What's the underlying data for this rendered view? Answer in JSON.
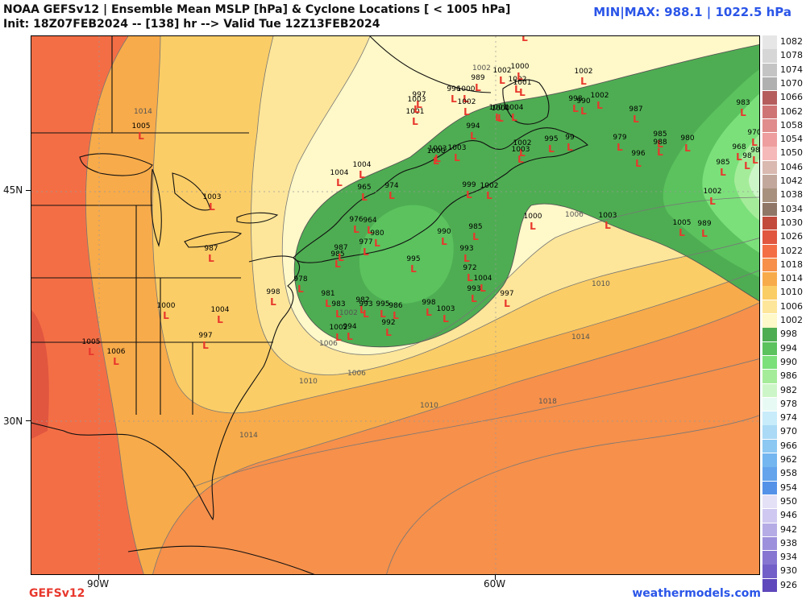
{
  "header": {
    "title_line1": "NOAA GEFSv12 | Ensemble Mean MSLP [hPa] & Cyclone Locations [ < 1005 hPa]",
    "title_line2": "Init: 18Z07FEB2024 -- [138] hr --> Valid Tue 12Z13FEB2024",
    "minmax": "MIN|MAX: 988.1 | 1022.5 hPa"
  },
  "axes": {
    "lat_labels": [
      "45N",
      "30N"
    ],
    "lon_labels": [
      "90W",
      "60W"
    ]
  },
  "footer": {
    "model": "GEFSv12",
    "site": "weathermodels.com"
  },
  "colorbar": {
    "levels": [
      "1082",
      "1078",
      "1074",
      "1070",
      "1066",
      "1062",
      "1058",
      "1054",
      "1050",
      "1046",
      "1042",
      "1038",
      "1034",
      "1030",
      "1026",
      "1022",
      "1018",
      "1014",
      "1010",
      "1006",
      "1002",
      "998",
      "994",
      "990",
      "986",
      "982",
      "978",
      "974",
      "970",
      "966",
      "962",
      "958",
      "954",
      "950",
      "946",
      "942",
      "938",
      "934",
      "930",
      "926"
    ],
    "colors": [
      "#e6e6e6",
      "#d6d6d6",
      "#c4c4c4",
      "#b0b0b0",
      "#b55d5d",
      "#cf7474",
      "#e08c8c",
      "#ee9e9e",
      "#f6b9b9",
      "#d9b9b0",
      "#c2a89c",
      "#a8907e",
      "#8f7666",
      "#c24a3c",
      "#e0563f",
      "#f46e45",
      "#f6904b",
      "#f8ab4a",
      "#fbcd66",
      "#fde69a",
      "#fff8c8",
      "#4ead52",
      "#5bc25e",
      "#7be07a",
      "#a5ec9a",
      "#cdf6c8",
      "#e8faf4",
      "#c8ecfa",
      "#aadaf6",
      "#8cc8f2",
      "#74b6ef",
      "#63a4ec",
      "#5492e8",
      "#e4e0f6",
      "#cfc8f0",
      "#b5ace6",
      "#9c90dc",
      "#8676d2",
      "#725fc8",
      "#5f48bc"
    ]
  },
  "map": {
    "contour_labels": [
      "1014",
      "1006",
      "1002",
      "1010",
      "1014",
      "1010",
      "1006",
      "1018",
      "1014",
      "1002",
      "1006",
      "1010"
    ],
    "lows": [
      {
        "v": "1005"
      },
      {
        "v": "1003"
      },
      {
        "v": "987"
      },
      {
        "v": "1000"
      },
      {
        "v": "1004"
      },
      {
        "v": "997"
      },
      {
        "v": "1005"
      },
      {
        "v": "1006"
      },
      {
        "v": "1004"
      },
      {
        "v": "1004"
      },
      {
        "v": "965"
      },
      {
        "v": "974"
      },
      {
        "v": "976"
      },
      {
        "v": "964"
      },
      {
        "v": "980"
      },
      {
        "v": "977"
      },
      {
        "v": "985"
      },
      {
        "v": "987"
      },
      {
        "v": "978"
      },
      {
        "v": "998"
      },
      {
        "v": "981"
      },
      {
        "v": "983"
      },
      {
        "v": "982"
      },
      {
        "v": "993"
      },
      {
        "v": "995"
      },
      {
        "v": "986"
      },
      {
        "v": "992"
      },
      {
        "v": "1002"
      },
      {
        "v": "994"
      },
      {
        "v": "998"
      },
      {
        "v": "1003"
      },
      {
        "v": "995"
      },
      {
        "v": "990"
      },
      {
        "v": "985"
      },
      {
        "v": "993"
      },
      {
        "v": "972"
      },
      {
        "v": "1004"
      },
      {
        "v": "993"
      },
      {
        "v": "997"
      },
      {
        "v": "999"
      },
      {
        "v": "1002"
      },
      {
        "v": "1000"
      },
      {
        "v": "1003"
      },
      {
        "v": "1003"
      },
      {
        "v": "994"
      },
      {
        "v": "997"
      },
      {
        "v": "1001"
      },
      {
        "v": "1002"
      },
      {
        "v": "996"
      },
      {
        "v": "1000"
      },
      {
        "v": "1002"
      },
      {
        "v": "1001"
      },
      {
        "v": "1000"
      },
      {
        "v": "1002"
      },
      {
        "v": "1000"
      },
      {
        "v": "1003"
      },
      {
        "v": "1001"
      },
      {
        "v": "1002"
      },
      {
        "v": "1003"
      },
      {
        "v": "995"
      },
      {
        "v": "99"
      },
      {
        "v": "998"
      },
      {
        "v": "990"
      },
      {
        "v": "1002"
      },
      {
        "v": "987"
      },
      {
        "v": "979"
      },
      {
        "v": "985"
      },
      {
        "v": "988"
      },
      {
        "v": "996"
      },
      {
        "v": "980"
      },
      {
        "v": "983"
      },
      {
        "v": "970"
      },
      {
        "v": "968"
      },
      {
        "v": "98"
      },
      {
        "v": "98"
      },
      {
        "v": "985"
      },
      {
        "v": "1002"
      },
      {
        "v": "1005"
      },
      {
        "v": "989"
      },
      {
        "v": "1003"
      },
      {
        "v": "1000"
      },
      {
        "v": "1003"
      },
      {
        "v": "1004"
      },
      {
        "v": "989"
      },
      {
        "v": "1002"
      }
    ]
  }
}
